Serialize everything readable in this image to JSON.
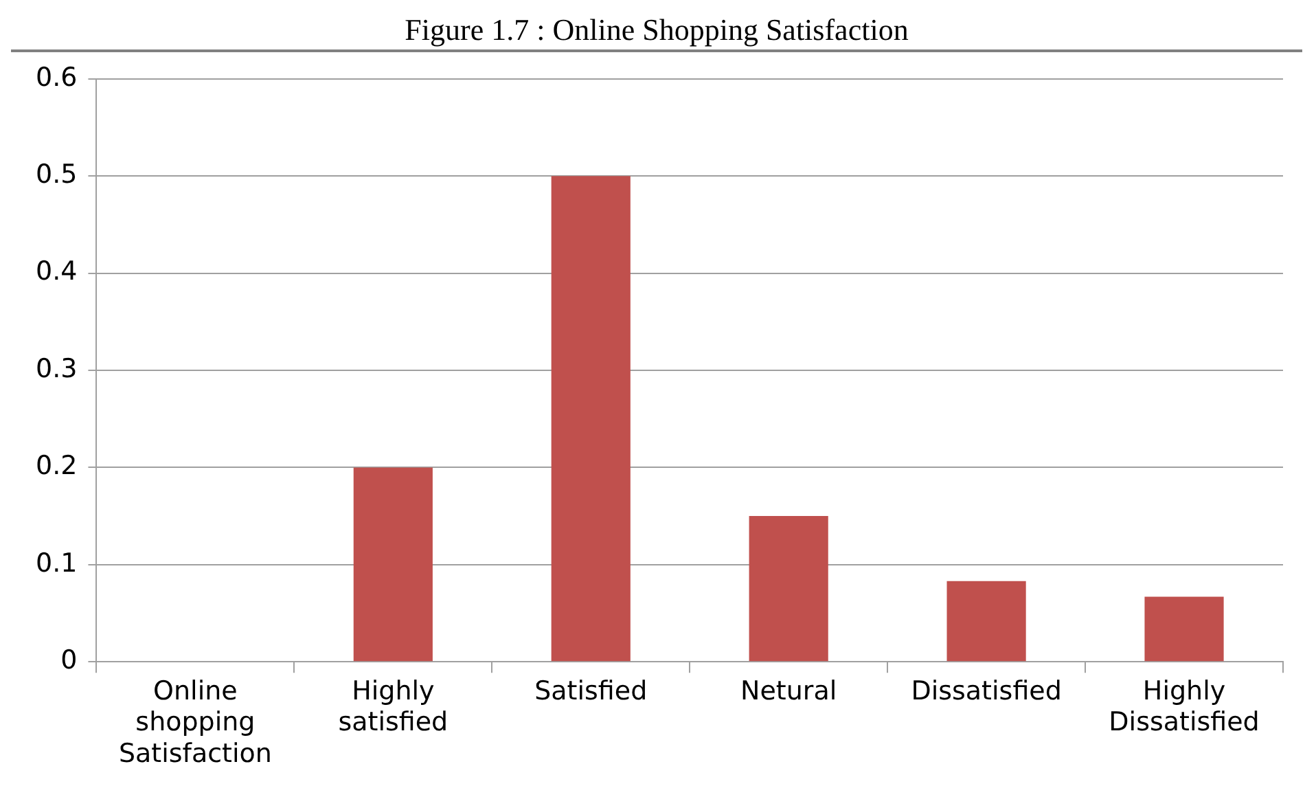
{
  "chart_data": {
    "type": "bar",
    "title": "Figure 1.7 : Online Shopping Satisfaction",
    "categories": [
      "Online shopping Satisfaction",
      "Highly satisfied",
      "Satisfied",
      "Netural",
      "Dissatisfied",
      "Highly Dissatisfied"
    ],
    "values": [
      0,
      0.2,
      0.5,
      0.15,
      0.083,
      0.067
    ],
    "color": "#c0504d",
    "ylim": [
      0,
      0.6
    ],
    "yticks": [
      0,
      0.1,
      0.2,
      0.3,
      0.4,
      0.5,
      0.6
    ],
    "grid": "y",
    "legend": false
  }
}
